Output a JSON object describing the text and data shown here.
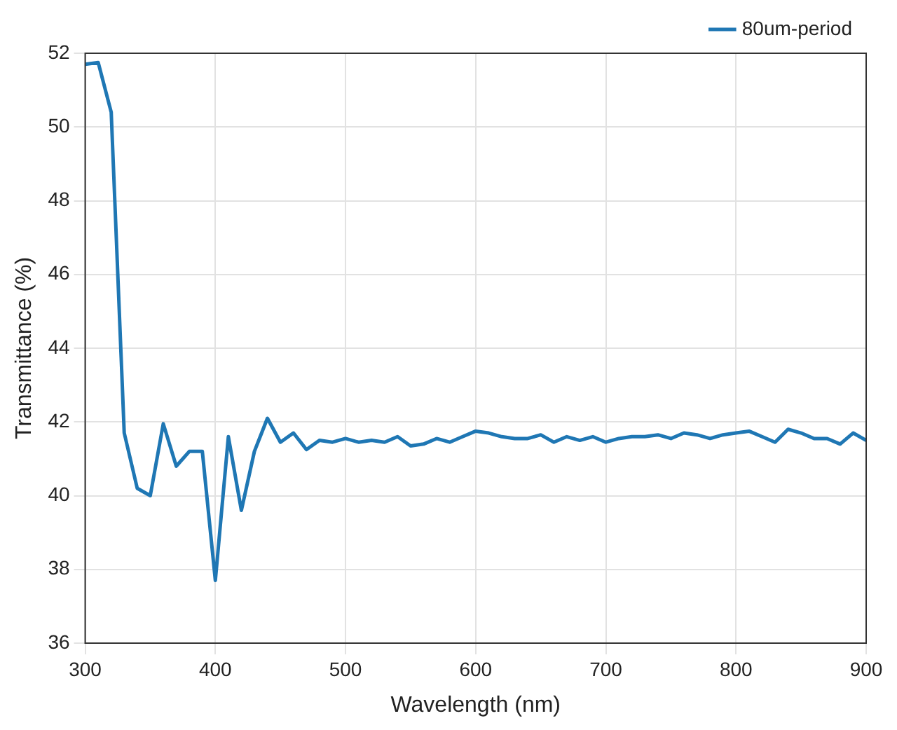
{
  "chart_data": {
    "type": "line",
    "xlabel": "Wavelength (nm)",
    "ylabel": "Transmittance (%)",
    "x": [
      300,
      310,
      320,
      330,
      340,
      350,
      360,
      370,
      380,
      390,
      400,
      410,
      420,
      430,
      440,
      450,
      460,
      470,
      480,
      490,
      500,
      510,
      520,
      530,
      540,
      550,
      560,
      570,
      580,
      590,
      600,
      610,
      620,
      630,
      640,
      650,
      660,
      670,
      680,
      690,
      700,
      710,
      720,
      730,
      740,
      750,
      760,
      770,
      780,
      790,
      800,
      810,
      820,
      830,
      840,
      850,
      860,
      870,
      880,
      890,
      900
    ],
    "series": [
      {
        "name": "80um-period",
        "color": "#1f77b4",
        "values": [
          51.7,
          51.75,
          50.4,
          41.7,
          40.2,
          40.0,
          41.95,
          40.8,
          41.2,
          41.2,
          37.7,
          41.6,
          39.6,
          41.2,
          42.1,
          41.45,
          41.7,
          41.25,
          41.5,
          41.45,
          41.55,
          41.45,
          41.5,
          41.45,
          41.6,
          41.35,
          41.4,
          41.55,
          41.45,
          41.6,
          41.75,
          41.7,
          41.6,
          41.55,
          41.55,
          41.65,
          41.45,
          41.6,
          41.5,
          41.6,
          41.45,
          41.55,
          41.6,
          41.6,
          41.65,
          41.55,
          41.7,
          41.65,
          41.55,
          41.65,
          41.7,
          41.75,
          41.6,
          41.45,
          41.8,
          41.7,
          41.55,
          41.55,
          41.4,
          41.7,
          41.5
        ]
      }
    ],
    "xlim": [
      300,
      900
    ],
    "xticks": [
      300,
      400,
      500,
      600,
      700,
      800,
      900
    ],
    "ylim": [
      36,
      52
    ],
    "yticks": [
      36,
      38,
      40,
      42,
      44,
      46,
      48,
      50,
      52
    ],
    "grid": true,
    "legend": "top right",
    "marker": "none",
    "line_style": "solid"
  }
}
